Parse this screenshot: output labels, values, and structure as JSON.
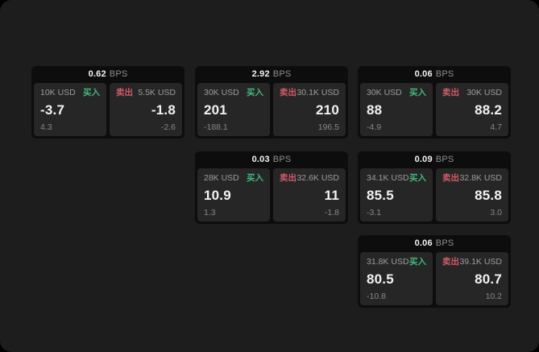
{
  "labels": {
    "buy": "买入",
    "sell": "卖出",
    "bps": "BPS"
  },
  "colors": {
    "page-bg": "#1d1d1d",
    "card-bg": "#0d0d0d",
    "panel-bg": "#262626",
    "buy": "#40b87c",
    "sell": "#d25a68",
    "text-bright": "#f2f2f2",
    "text-muted": "#9d9d9d",
    "text-dim": "#8f8f8f",
    "text-faint": "#888888"
  },
  "cards": [
    {
      "bps": "0.62",
      "buy": {
        "size": "10K USD",
        "price": "-3.7",
        "delta": "4.3"
      },
      "sell": {
        "size": "5.5K USD",
        "price": "-1.8",
        "delta": "-2.6"
      }
    },
    {
      "bps": "2.92",
      "buy": {
        "size": "30K USD",
        "price": "201",
        "delta": "-188.1"
      },
      "sell": {
        "size": "30.1K USD",
        "price": "210",
        "delta": "196.5"
      }
    },
    {
      "bps": "0.06",
      "buy": {
        "size": "30K USD",
        "price": "88",
        "delta": "-4.9"
      },
      "sell": {
        "size": "30K USD",
        "price": "88.2",
        "delta": "4.7"
      }
    },
    {
      "bps": "0.03",
      "buy": {
        "size": "28K USD",
        "price": "10.9",
        "delta": "1.3"
      },
      "sell": {
        "size": "32.6K USD",
        "price": "11",
        "delta": "-1.8"
      }
    },
    {
      "bps": "0.09",
      "buy": {
        "size": "34.1K USD",
        "price": "85.5",
        "delta": "-3.1"
      },
      "sell": {
        "size": "32.8K USD",
        "price": "85.8",
        "delta": "3.0"
      }
    },
    {
      "bps": "0.06",
      "buy": {
        "size": "31.8K USD",
        "price": "80.5",
        "delta": "-10.8"
      },
      "sell": {
        "size": "39.1K USD",
        "price": "80.7",
        "delta": "10.2"
      }
    }
  ]
}
